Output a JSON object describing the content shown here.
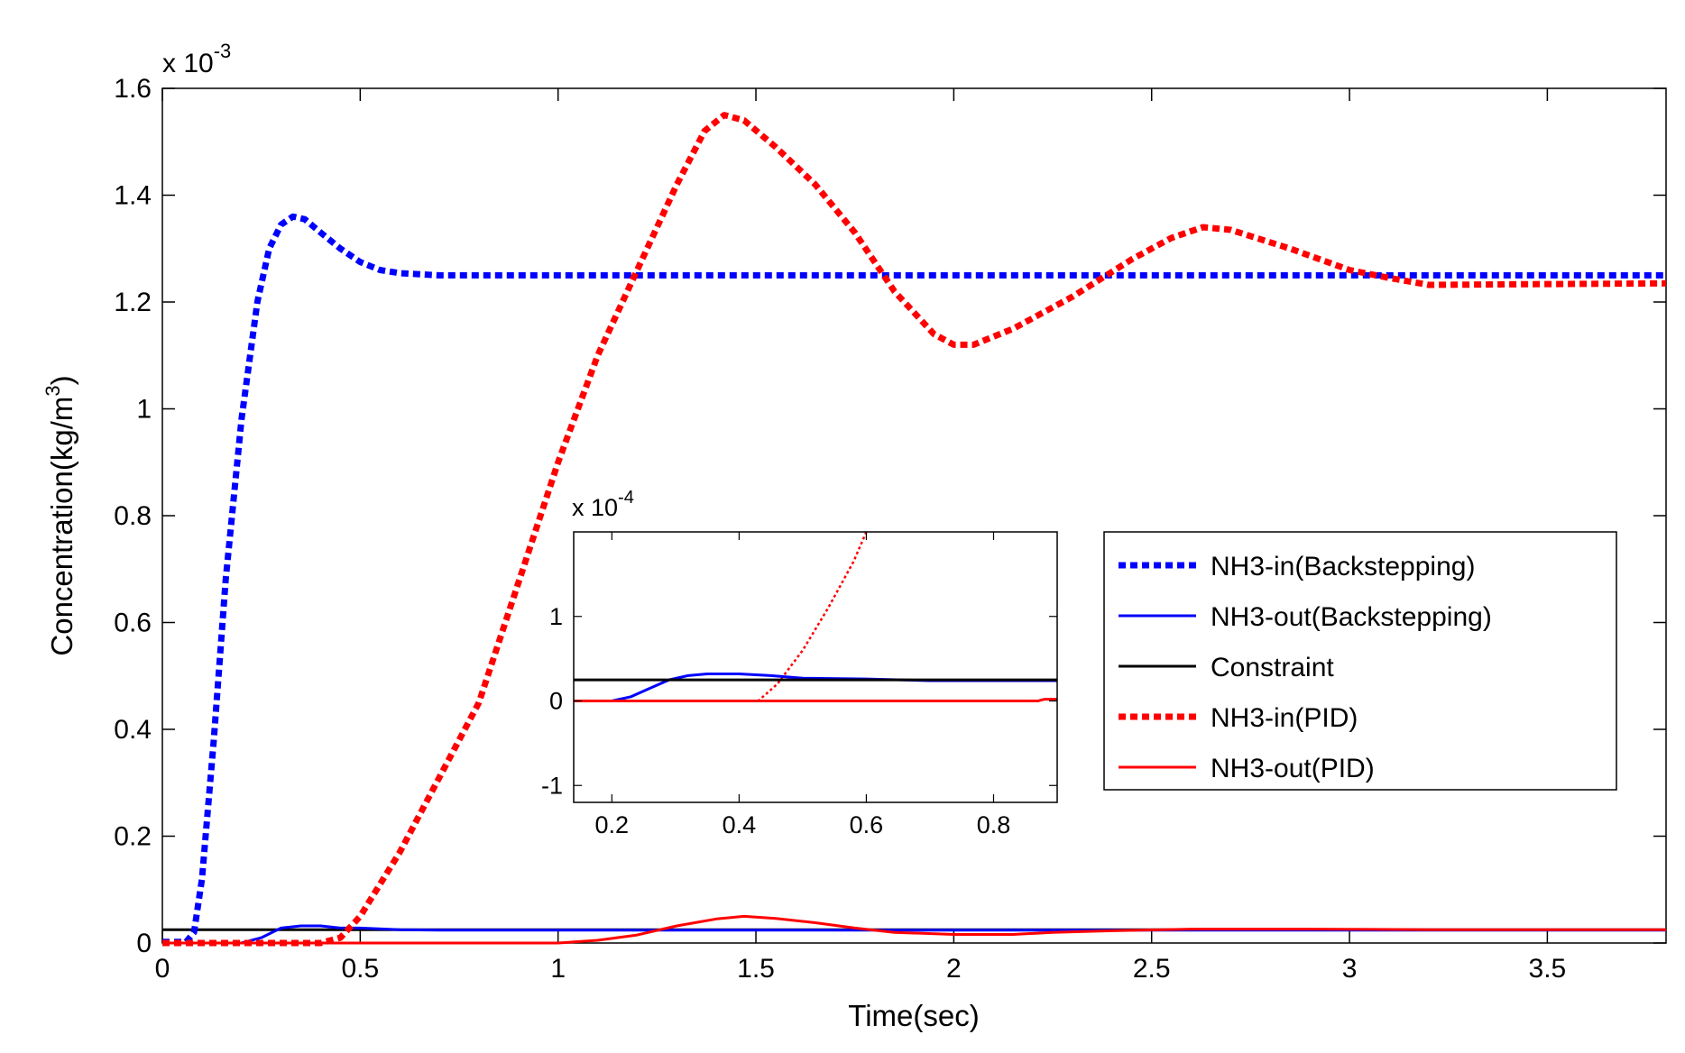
{
  "chart_data": {
    "type": "line",
    "title": "",
    "xlabel": "Time(sec)",
    "ylabel": "Concentration(kg/m",
    "ylabel_superscript": "3",
    "ylabel_suffix": ")",
    "y_exponent_prefix": "x 10",
    "y_exponent": "-3",
    "xlim": [
      0,
      3.8
    ],
    "ylim": [
      0,
      1.6
    ],
    "xticks": [
      0,
      0.5,
      1,
      1.5,
      2,
      2.5,
      3,
      3.5
    ],
    "xtick_labels": [
      "0",
      "0.5",
      "1",
      "1.5",
      "2",
      "2.5",
      "3",
      "3.5"
    ],
    "yticks": [
      0,
      0.2,
      0.4,
      0.6,
      0.8,
      1,
      1.2,
      1.4,
      1.6
    ],
    "ytick_labels": [
      "0",
      "0.2",
      "0.4",
      "0.6",
      "0.8",
      "1",
      "1.2",
      "1.4",
      "1.6"
    ],
    "grid": false,
    "legend_position": "center-right",
    "series": [
      {
        "name": "NH3-in(Backstepping)",
        "color": "#0000ff",
        "style": "dotted-thick",
        "points": [
          [
            0,
            0.002
          ],
          [
            0.06,
            0.002
          ],
          [
            0.08,
            0.02
          ],
          [
            0.1,
            0.12
          ],
          [
            0.13,
            0.38
          ],
          [
            0.16,
            0.68
          ],
          [
            0.2,
            0.98
          ],
          [
            0.24,
            1.2
          ],
          [
            0.27,
            1.3
          ],
          [
            0.3,
            1.345
          ],
          [
            0.33,
            1.36
          ],
          [
            0.36,
            1.355
          ],
          [
            0.4,
            1.33
          ],
          [
            0.45,
            1.3
          ],
          [
            0.5,
            1.275
          ],
          [
            0.55,
            1.26
          ],
          [
            0.6,
            1.254
          ],
          [
            0.7,
            1.25
          ],
          [
            3.8,
            1.25
          ]
        ]
      },
      {
        "name": "NH3-out(Backstepping)",
        "color": "#0000ff",
        "style": "solid",
        "points": [
          [
            0,
            0.0
          ],
          [
            0.2,
            0.0
          ],
          [
            0.25,
            0.01
          ],
          [
            0.3,
            0.028
          ],
          [
            0.35,
            0.032
          ],
          [
            0.4,
            0.032
          ],
          [
            0.45,
            0.028
          ],
          [
            0.5,
            0.028
          ],
          [
            0.6,
            0.025
          ],
          [
            0.7,
            0.024
          ],
          [
            3.8,
            0.024
          ]
        ]
      },
      {
        "name": "Constraint",
        "color": "#000000",
        "style": "solid",
        "points": [
          [
            0,
            0.025
          ],
          [
            3.8,
            0.025
          ]
        ]
      },
      {
        "name": "NH3-in(PID)",
        "color": "#ff0000",
        "style": "dotted-thick",
        "points": [
          [
            0,
            0.0
          ],
          [
            0.4,
            0.0
          ],
          [
            0.45,
            0.01
          ],
          [
            0.5,
            0.05
          ],
          [
            0.6,
            0.17
          ],
          [
            0.8,
            0.45
          ],
          [
            1.0,
            0.9
          ],
          [
            1.1,
            1.1
          ],
          [
            1.2,
            1.26
          ],
          [
            1.3,
            1.42
          ],
          [
            1.37,
            1.52
          ],
          [
            1.42,
            1.55
          ],
          [
            1.47,
            1.54
          ],
          [
            1.55,
            1.49
          ],
          [
            1.65,
            1.42
          ],
          [
            1.75,
            1.33
          ],
          [
            1.85,
            1.22
          ],
          [
            1.95,
            1.14
          ],
          [
            2.0,
            1.12
          ],
          [
            2.05,
            1.12
          ],
          [
            2.15,
            1.15
          ],
          [
            2.3,
            1.21
          ],
          [
            2.45,
            1.28
          ],
          [
            2.55,
            1.32
          ],
          [
            2.63,
            1.34
          ],
          [
            2.7,
            1.335
          ],
          [
            2.85,
            1.3
          ],
          [
            3.0,
            1.26
          ],
          [
            3.1,
            1.245
          ],
          [
            3.2,
            1.232
          ],
          [
            3.4,
            1.233
          ],
          [
            3.8,
            1.235
          ]
        ]
      },
      {
        "name": "NH3-out(PID)",
        "color": "#ff0000",
        "style": "solid",
        "points": [
          [
            0,
            0.0
          ],
          [
            1.0,
            0.0
          ],
          [
            1.1,
            0.005
          ],
          [
            1.2,
            0.015
          ],
          [
            1.3,
            0.032
          ],
          [
            1.4,
            0.045
          ],
          [
            1.47,
            0.05
          ],
          [
            1.55,
            0.046
          ],
          [
            1.65,
            0.038
          ],
          [
            1.75,
            0.028
          ],
          [
            1.85,
            0.02
          ],
          [
            2.0,
            0.016
          ],
          [
            2.15,
            0.016
          ],
          [
            2.25,
            0.02
          ],
          [
            2.4,
            0.023
          ],
          [
            2.6,
            0.026
          ],
          [
            2.9,
            0.026
          ],
          [
            3.2,
            0.025
          ],
          [
            3.8,
            0.025
          ]
        ]
      }
    ],
    "inset": {
      "xlim": [
        0.14,
        0.9
      ],
      "ylim": [
        -1.2,
        2.0
      ],
      "xticks": [
        0.2,
        0.4,
        0.6,
        0.8
      ],
      "xtick_labels": [
        "0.2",
        "0.4",
        "0.6",
        "0.8"
      ],
      "yticks": [
        -1,
        0,
        1
      ],
      "ytick_labels": [
        "-1",
        "0",
        "1"
      ],
      "y_exponent_prefix": "x 10",
      "y_exponent": "-4",
      "series": [
        {
          "name": "NH3-in(PID)",
          "color": "#ff0000",
          "style": "dotted",
          "points": [
            [
              0.14,
              0.0
            ],
            [
              0.43,
              0.0
            ],
            [
              0.46,
              0.2
            ],
            [
              0.5,
              0.6
            ],
            [
              0.54,
              1.1
            ],
            [
              0.58,
              1.65
            ],
            [
              0.6,
              2.0
            ]
          ]
        },
        {
          "name": "NH3-out(Backstepping)",
          "color": "#0000ff",
          "style": "solid",
          "points": [
            [
              0.14,
              0.0
            ],
            [
              0.2,
              0.0
            ],
            [
              0.23,
              0.05
            ],
            [
              0.26,
              0.15
            ],
            [
              0.29,
              0.25
            ],
            [
              0.32,
              0.3
            ],
            [
              0.35,
              0.32
            ],
            [
              0.4,
              0.32
            ],
            [
              0.45,
              0.3
            ],
            [
              0.5,
              0.27
            ],
            [
              0.6,
              0.26
            ],
            [
              0.7,
              0.24
            ],
            [
              0.9,
              0.24
            ]
          ]
        },
        {
          "name": "Constraint",
          "color": "#000000",
          "style": "solid",
          "points": [
            [
              0.14,
              0.25
            ],
            [
              0.9,
              0.25
            ]
          ]
        },
        {
          "name": "NH3-out(PID)",
          "color": "#ff0000",
          "style": "solid",
          "points": [
            [
              0.14,
              0.0
            ],
            [
              0.87,
              0.0
            ],
            [
              0.88,
              0.02
            ],
            [
              0.9,
              0.02
            ]
          ]
        }
      ]
    }
  }
}
